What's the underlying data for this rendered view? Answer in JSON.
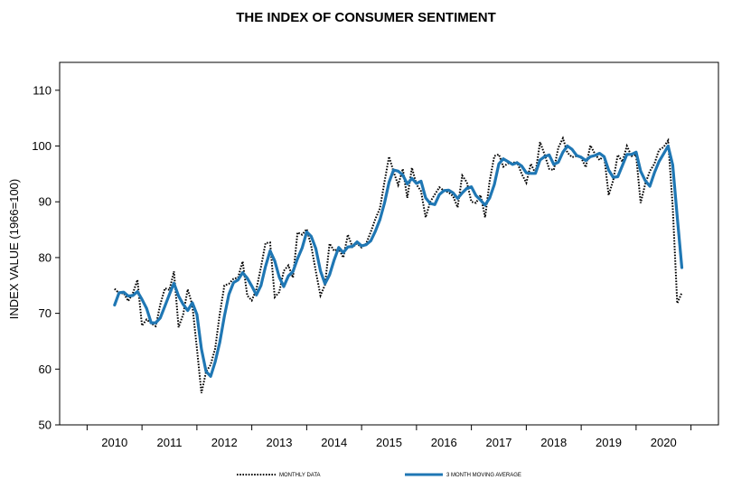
{
  "chart_data": {
    "type": "line",
    "title": "THE INDEX OF CONSUMER SENTIMENT",
    "ylabel": "INDEX VALUE (1966=100)",
    "xlabel": "",
    "xlim": [
      2009,
      2021
    ],
    "ylim": [
      50,
      115
    ],
    "yticks": [
      50,
      60,
      70,
      80,
      90,
      100,
      110
    ],
    "xticks": [
      2010,
      2011,
      2012,
      2013,
      2014,
      2015,
      2016,
      2017,
      2018,
      2019,
      2020
    ],
    "xtick_labels": [
      "2010",
      "2011",
      "2012",
      "2013",
      "2014",
      "2015",
      "2016",
      "2017",
      "2018",
      "2019",
      "2020"
    ],
    "grid": false,
    "legend_position": "bottom",
    "series": [
      {
        "name": "MONTHLY DATA",
        "style": "dotted",
        "color": "#000000",
        "x": [
          2010.0,
          2010.083,
          2010.167,
          2010.25,
          2010.333,
          2010.417,
          2010.5,
          2010.583,
          2010.667,
          2010.75,
          2010.833,
          2010.917,
          2011.0,
          2011.083,
          2011.167,
          2011.25,
          2011.333,
          2011.417,
          2011.5,
          2011.583,
          2011.667,
          2011.75,
          2011.833,
          2011.917,
          2012.0,
          2012.083,
          2012.167,
          2012.25,
          2012.333,
          2012.417,
          2012.5,
          2012.583,
          2012.667,
          2012.75,
          2012.833,
          2012.917,
          2013.0,
          2013.083,
          2013.167,
          2013.25,
          2013.333,
          2013.417,
          2013.5,
          2013.583,
          2013.667,
          2013.75,
          2013.833,
          2013.917,
          2014.0,
          2014.083,
          2014.167,
          2014.25,
          2014.333,
          2014.417,
          2014.5,
          2014.583,
          2014.667,
          2014.75,
          2014.833,
          2014.917,
          2015.0,
          2015.083,
          2015.167,
          2015.25,
          2015.333,
          2015.417,
          2015.5,
          2015.583,
          2015.667,
          2015.75,
          2015.833,
          2015.917,
          2016.0,
          2016.083,
          2016.167,
          2016.25,
          2016.333,
          2016.417,
          2016.5,
          2016.583,
          2016.667,
          2016.75,
          2016.833,
          2016.917,
          2017.0,
          2017.083,
          2017.167,
          2017.25,
          2017.333,
          2017.417,
          2017.5,
          2017.583,
          2017.667,
          2017.75,
          2017.833,
          2017.917,
          2018.0,
          2018.083,
          2018.167,
          2018.25,
          2018.333,
          2018.417,
          2018.5,
          2018.583,
          2018.667,
          2018.75,
          2018.833,
          2018.917,
          2019.0,
          2019.083,
          2019.167,
          2019.25,
          2019.333,
          2019.417,
          2019.5,
          2019.583,
          2019.667,
          2019.75,
          2019.833,
          2019.917,
          2020.0,
          2020.083,
          2020.167,
          2020.25,
          2020.333
        ],
        "values": [
          74.4,
          73.6,
          73.6,
          72.2,
          73.6,
          76.0,
          67.8,
          68.9,
          68.2,
          67.7,
          71.6,
          74.5,
          74.2,
          77.5,
          67.5,
          69.8,
          74.3,
          71.5,
          63.7,
          55.7,
          59.5,
          60.8,
          63.7,
          69.9,
          75.0,
          75.3,
          76.2,
          76.4,
          79.3,
          73.2,
          72.3,
          74.3,
          78.3,
          82.6,
          82.7,
          72.9,
          73.8,
          77.6,
          78.6,
          76.4,
          84.5,
          84.1,
          85.1,
          82.1,
          77.5,
          73.2,
          75.1,
          82.5,
          81.2,
          81.6,
          80.0,
          84.1,
          81.9,
          82.5,
          81.8,
          82.5,
          84.6,
          86.9,
          88.8,
          93.6,
          98.1,
          95.4,
          93.0,
          95.9,
          90.7,
          96.1,
          93.1,
          91.9,
          87.2,
          90.0,
          91.3,
          92.6,
          92.0,
          91.7,
          91.0,
          89.0,
          94.7,
          93.5,
          90.0,
          89.8,
          91.2,
          87.2,
          93.8,
          98.2,
          98.5,
          96.3,
          96.9,
          97.0,
          97.1,
          95.0,
          93.4,
          96.8,
          95.1,
          100.7,
          98.5,
          95.9,
          95.7,
          99.7,
          101.4,
          98.8,
          98.0,
          98.2,
          97.9,
          96.2,
          100.1,
          98.6,
          97.5,
          98.3,
          91.2,
          93.8,
          98.4,
          97.2,
          100.0,
          98.2,
          98.4,
          89.8,
          93.2,
          95.5,
          96.8,
          99.3,
          99.8,
          101.0,
          89.1,
          71.8,
          73.7
        ]
      },
      {
        "name": "3 MONTH MOVING AVERAGE",
        "style": "solid",
        "color": "#1F77B4",
        "x": [
          2010.0,
          2010.083,
          2010.167,
          2010.25,
          2010.333,
          2010.417,
          2010.5,
          2010.583,
          2010.667,
          2010.75,
          2010.833,
          2010.917,
          2011.0,
          2011.083,
          2011.167,
          2011.25,
          2011.333,
          2011.417,
          2011.5,
          2011.583,
          2011.667,
          2011.75,
          2011.833,
          2011.917,
          2012.0,
          2012.083,
          2012.167,
          2012.25,
          2012.333,
          2012.417,
          2012.5,
          2012.583,
          2012.667,
          2012.75,
          2012.833,
          2012.917,
          2013.0,
          2013.083,
          2013.167,
          2013.25,
          2013.333,
          2013.417,
          2013.5,
          2013.583,
          2013.667,
          2013.75,
          2013.833,
          2013.917,
          2014.0,
          2014.083,
          2014.167,
          2014.25,
          2014.333,
          2014.417,
          2014.5,
          2014.583,
          2014.667,
          2014.75,
          2014.833,
          2014.917,
          2015.0,
          2015.083,
          2015.167,
          2015.25,
          2015.333,
          2015.417,
          2015.5,
          2015.583,
          2015.667,
          2015.75,
          2015.833,
          2015.917,
          2016.0,
          2016.083,
          2016.167,
          2016.25,
          2016.333,
          2016.417,
          2016.5,
          2016.583,
          2016.667,
          2016.75,
          2016.833,
          2016.917,
          2017.0,
          2017.083,
          2017.167,
          2017.25,
          2017.333,
          2017.417,
          2017.5,
          2017.583,
          2017.667,
          2017.75,
          2017.833,
          2017.917,
          2018.0,
          2018.083,
          2018.167,
          2018.25,
          2018.333,
          2018.417,
          2018.5,
          2018.583,
          2018.667,
          2018.75,
          2018.833,
          2018.917,
          2019.0,
          2019.083,
          2019.167,
          2019.25,
          2019.333,
          2019.417,
          2019.5,
          2019.583,
          2019.667,
          2019.75,
          2019.833,
          2019.917,
          2020.0,
          2020.083,
          2020.167,
          2020.25,
          2020.333
        ],
        "values": [
          71.5,
          73.7,
          73.8,
          73.1,
          73.2,
          73.9,
          72.5,
          70.9,
          68.3,
          68.3,
          69.2,
          71.3,
          73.4,
          75.4,
          73.1,
          71.6,
          70.5,
          71.9,
          69.8,
          63.6,
          59.6,
          58.7,
          61.3,
          64.8,
          69.5,
          73.4,
          75.5,
          76.0,
          77.3,
          76.3,
          74.9,
          73.3,
          75.0,
          78.4,
          81.2,
          79.4,
          76.5,
          74.8,
          76.7,
          77.5,
          79.8,
          81.7,
          84.6,
          83.8,
          81.6,
          77.6,
          75.3,
          76.9,
          79.6,
          81.8,
          80.9,
          81.9,
          82.0,
          82.8,
          82.1,
          82.3,
          83.0,
          84.7,
          86.8,
          89.8,
          93.5,
          95.7,
          95.5,
          94.8,
          93.2,
          94.2,
          93.3,
          93.7,
          90.7,
          89.7,
          89.5,
          91.3,
          92.0,
          92.1,
          91.6,
          90.6,
          91.6,
          92.4,
          92.7,
          91.1,
          90.3,
          89.4,
          90.7,
          93.1,
          96.8,
          97.7,
          97.2,
          96.7,
          97.0,
          96.4,
          95.2,
          95.1,
          95.1,
          97.5,
          98.1,
          98.4,
          96.7,
          97.1,
          98.9,
          100.0,
          99.4,
          98.3,
          98.0,
          97.4,
          98.1,
          98.3,
          98.7,
          98.1,
          95.7,
          94.4,
          94.5,
          96.5,
          98.5,
          98.5,
          98.9,
          95.5,
          93.8,
          92.8,
          95.2,
          97.2,
          98.6,
          100.0,
          96.6,
          87.3,
          78.2
        ]
      }
    ]
  }
}
